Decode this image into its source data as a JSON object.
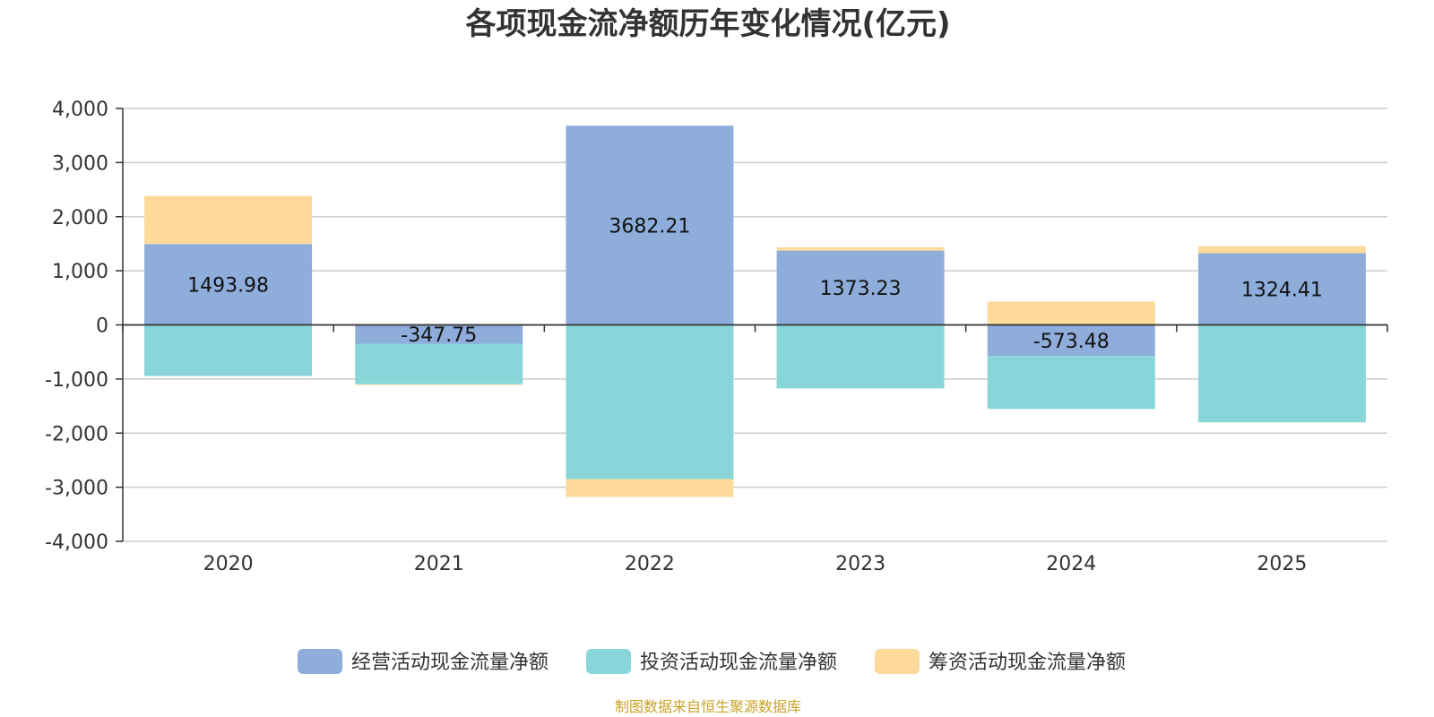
{
  "chart_data": {
    "type": "bar",
    "stacked": true,
    "title": "各项现金流净额历年变化情况(亿元)",
    "categories": [
      "2020",
      "2021",
      "2022",
      "2023",
      "2024",
      "2025"
    ],
    "ylim": [
      -4000,
      4000
    ],
    "yticks": [
      4000,
      3000,
      2000,
      1000,
      0,
      -1000,
      -2000,
      -3000,
      -4000
    ],
    "ytick_labels": [
      "4,000",
      "3,000",
      "2,000",
      "1,000",
      "0",
      "-1,000",
      "-2,000",
      "-3,000",
      "-4,000"
    ],
    "grid": true,
    "legend_position": "bottom",
    "series": [
      {
        "name": "经营活动现金流量净额",
        "color": "#8eadda",
        "values": [
          1493.98,
          -347.75,
          3682.21,
          1373.23,
          -573.48,
          1324.41
        ],
        "labels": [
          "1493.98",
          "-347.75",
          "3682.21",
          "1373.23",
          "-573.48",
          "1324.41"
        ]
      },
      {
        "name": "投资活动现金流量净额",
        "color": "#88d6d9",
        "values": [
          -945,
          -750,
          -2850,
          -1175,
          -980,
          -1800
        ]
      },
      {
        "name": "筹资活动现金流量净额",
        "color": "#fdd99a",
        "values": [
          890,
          -15,
          -330,
          60,
          430,
          130
        ]
      }
    ]
  },
  "source": {
    "text": "制图数据来自恒生聚源数据库",
    "color": "#c9a227"
  }
}
